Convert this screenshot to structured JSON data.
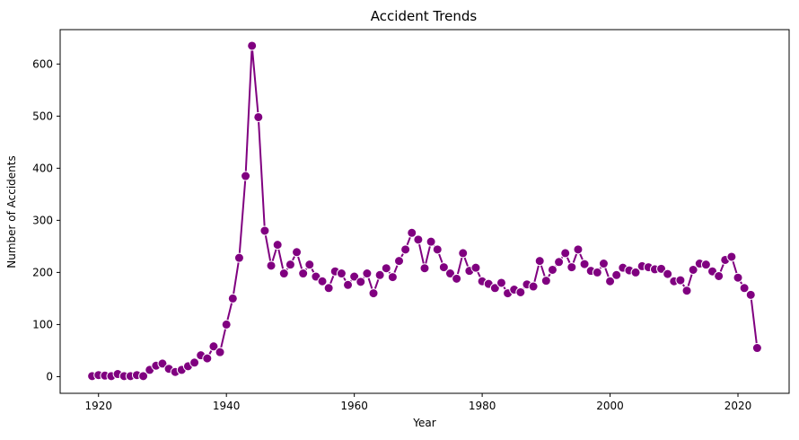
{
  "chart_data": {
    "type": "line",
    "title": "Accident Trends",
    "xlabel": "Year",
    "ylabel": "Number of Accidents",
    "xlim": [
      1914,
      2028
    ],
    "ylim": [
      -32,
      666
    ],
    "x_ticks": [
      1920,
      1940,
      1960,
      1980,
      2000,
      2020
    ],
    "y_ticks": [
      0,
      100,
      200,
      300,
      400,
      500,
      600
    ],
    "grid": false,
    "color": "#800080",
    "series": [
      {
        "x": [
          1919,
          1920,
          1921,
          1922,
          1923,
          1924,
          1925,
          1926,
          1927,
          1928,
          1929,
          1930,
          1931,
          1932,
          1933,
          1934,
          1935,
          1936,
          1937,
          1938,
          1939,
          1940,
          1941,
          1942,
          1943,
          1944,
          1945,
          1946,
          1947,
          1948,
          1949,
          1950,
          1951,
          1952,
          1953,
          1954,
          1955,
          1956,
          1957,
          1958,
          1959,
          1960,
          1961,
          1962,
          1963,
          1964,
          1965,
          1966,
          1967,
          1968,
          1969,
          1970,
          1971,
          1972,
          1973,
          1974,
          1975,
          1976,
          1977,
          1978,
          1979,
          1980,
          1981,
          1982,
          1983,
          1984,
          1985,
          1986,
          1987,
          1988,
          1989,
          1990,
          1991,
          1992,
          1993,
          1994,
          1995,
          1996,
          1997,
          1998,
          1999,
          2000,
          2001,
          2002,
          2003,
          2004,
          2005,
          2006,
          2007,
          2008,
          2009,
          2010,
          2011,
          2012,
          2013,
          2014,
          2015,
          2016,
          2017,
          2018,
          2019,
          2020,
          2021,
          2022,
          2023
        ],
        "values": [
          1,
          3,
          2,
          1,
          5,
          1,
          1,
          3,
          1,
          13,
          21,
          25,
          15,
          9,
          13,
          20,
          27,
          41,
          35,
          58,
          47,
          100,
          150,
          228,
          385,
          635,
          498,
          280,
          213,
          253,
          198,
          215,
          239,
          198,
          215,
          192,
          183,
          170,
          202,
          198,
          176,
          192,
          182,
          198,
          160,
          195,
          208,
          191,
          222,
          244,
          276,
          263,
          208,
          259,
          244,
          210,
          198,
          188,
          237,
          203,
          209,
          183,
          178,
          170,
          180,
          160,
          167,
          162,
          177,
          173,
          222,
          184,
          205,
          220,
          237,
          210,
          244,
          216,
          203,
          200,
          217,
          183,
          195,
          209,
          204,
          200,
          212,
          210,
          206,
          207,
          197,
          183,
          185,
          165,
          205,
          217,
          215,
          202,
          193,
          224,
          230,
          190,
          170,
          157,
          55
        ]
      }
    ]
  }
}
